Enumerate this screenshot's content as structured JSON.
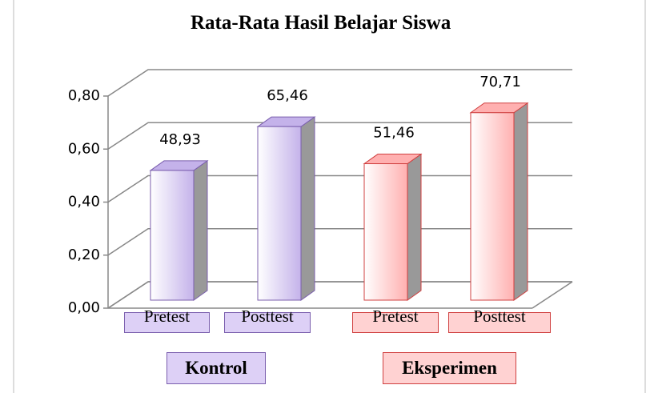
{
  "chart_data": {
    "type": "bar3d",
    "title": "Rata-Rata Hasil Belajar Siswa",
    "categories": [
      "Pretest",
      "Posttest",
      "Pretest",
      "Posttest"
    ],
    "groups": [
      "Kontrol",
      "Eksperimen"
    ],
    "values": [
      0.4893,
      0.6546,
      0.5146,
      0.7071
    ],
    "value_labels": [
      "48,93",
      "65,46",
      "51,46",
      "70,71"
    ],
    "colors": [
      "#c4b2ea",
      "#c4b2ea",
      "#ffb0b0",
      "#ffb0b0"
    ],
    "edge_colors": [
      "#7b5fae",
      "#7b5fae",
      "#d04040",
      "#d04040"
    ],
    "ylim": [
      0,
      0.8
    ],
    "yticks": [
      {
        "value": 0,
        "label": "0,00"
      },
      {
        "value": 0.2,
        "label": "0,20"
      },
      {
        "value": 0.4,
        "label": "0,40"
      },
      {
        "value": 0.6,
        "label": "0,60"
      },
      {
        "value": 0.8,
        "label": "0,80"
      }
    ],
    "grid": true
  }
}
